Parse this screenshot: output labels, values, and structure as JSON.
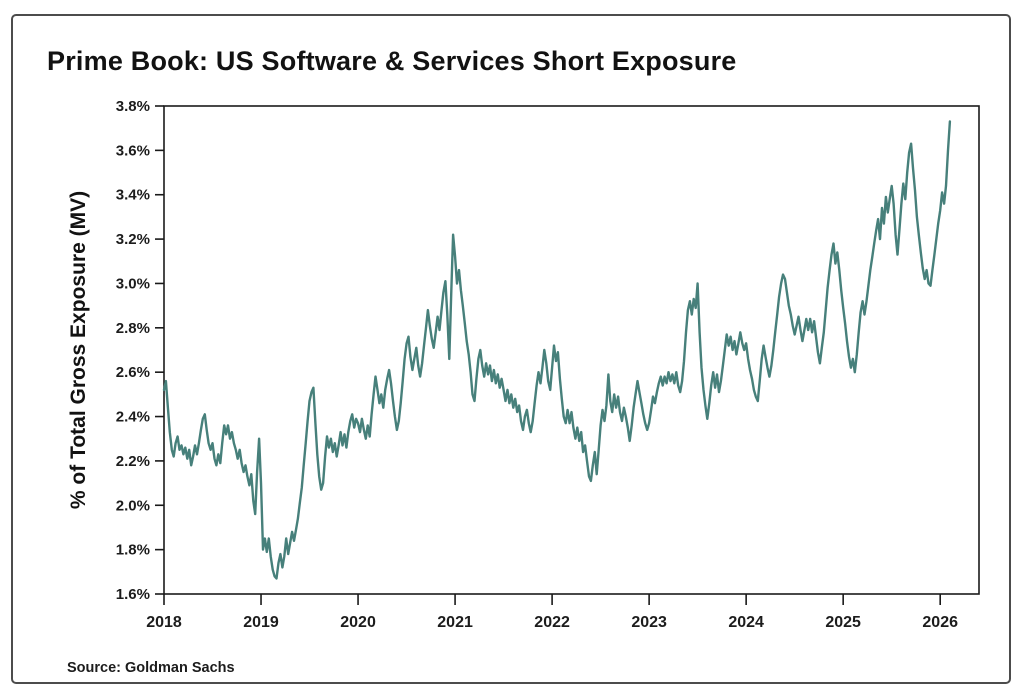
{
  "source_note": "Source: Goldman Sachs",
  "chart_data": {
    "type": "line",
    "title": "Prime Book: US Software & Services Short Exposure",
    "ylabel": "% of Total Gross Exposure (MV)",
    "xlabel": "",
    "xlim": [
      2018.0,
      2026.4
    ],
    "ylim": [
      1.6,
      3.8
    ],
    "grid": false,
    "legend": "none",
    "line_color": "#47807B",
    "axis_color": "#1a1a1a",
    "x_tick_values": [
      2018,
      2019,
      2020,
      2021,
      2022,
      2023,
      2024,
      2025,
      2026
    ],
    "x_tick_labels": [
      "2018",
      "2019",
      "2020",
      "2021",
      "2022",
      "2023",
      "2024",
      "2025",
      "2026"
    ],
    "y_tick_values": [
      3.8,
      3.6,
      3.4,
      3.2,
      3.0,
      2.8,
      2.6,
      2.4,
      2.2,
      2.0,
      1.8,
      1.6
    ],
    "y_tick_labels": [
      "3.8%",
      "3.6%",
      "3.4%",
      "3.2%",
      "3.0%",
      "2.8%",
      "2.6%",
      "2.4%",
      "2.2%",
      "2.0%",
      "1.8%",
      "1.6%"
    ],
    "series": {
      "name": "US Software & Services short exposure, % of total gross exposure (MV)",
      "x_start": 2018.0,
      "x_step": 0.02,
      "values": [
        2.52,
        2.56,
        2.44,
        2.33,
        2.25,
        2.22,
        2.28,
        2.31,
        2.25,
        2.27,
        2.23,
        2.26,
        2.21,
        2.25,
        2.18,
        2.22,
        2.27,
        2.23,
        2.28,
        2.34,
        2.39,
        2.41,
        2.34,
        2.28,
        2.25,
        2.28,
        2.21,
        2.18,
        2.23,
        2.19,
        2.28,
        2.36,
        2.32,
        2.36,
        2.3,
        2.33,
        2.28,
        2.25,
        2.21,
        2.25,
        2.19,
        2.15,
        2.18,
        2.13,
        2.09,
        2.14,
        2.02,
        1.96,
        2.15,
        2.3,
        2.1,
        1.8,
        1.85,
        1.79,
        1.85,
        1.77,
        1.71,
        1.68,
        1.67,
        1.74,
        1.78,
        1.72,
        1.77,
        1.85,
        1.78,
        1.83,
        1.88,
        1.84,
        1.89,
        1.94,
        2.01,
        2.08,
        2.18,
        2.28,
        2.38,
        2.47,
        2.51,
        2.53,
        2.37,
        2.23,
        2.13,
        2.07,
        2.1,
        2.22,
        2.31,
        2.26,
        2.3,
        2.24,
        2.28,
        2.22,
        2.27,
        2.33,
        2.27,
        2.32,
        2.26,
        2.33,
        2.38,
        2.41,
        2.35,
        2.39,
        2.37,
        2.33,
        2.39,
        2.34,
        2.3,
        2.36,
        2.31,
        2.41,
        2.5,
        2.58,
        2.52,
        2.46,
        2.5,
        2.44,
        2.52,
        2.57,
        2.61,
        2.55,
        2.47,
        2.4,
        2.34,
        2.38,
        2.46,
        2.56,
        2.66,
        2.73,
        2.76,
        2.67,
        2.61,
        2.66,
        2.71,
        2.63,
        2.58,
        2.64,
        2.72,
        2.8,
        2.88,
        2.81,
        2.75,
        2.71,
        2.78,
        2.85,
        2.79,
        2.88,
        2.96,
        3.01,
        2.86,
        2.66,
        2.95,
        3.22,
        3.12,
        3.0,
        3.06,
        2.97,
        2.9,
        2.82,
        2.74,
        2.68,
        2.6,
        2.5,
        2.47,
        2.57,
        2.66,
        2.7,
        2.63,
        2.58,
        2.64,
        2.59,
        2.63,
        2.56,
        2.61,
        2.55,
        2.59,
        2.53,
        2.57,
        2.52,
        2.47,
        2.52,
        2.46,
        2.5,
        2.44,
        2.48,
        2.42,
        2.45,
        2.38,
        2.34,
        2.4,
        2.43,
        2.37,
        2.33,
        2.38,
        2.46,
        2.54,
        2.6,
        2.55,
        2.62,
        2.7,
        2.64,
        2.56,
        2.52,
        2.62,
        2.72,
        2.65,
        2.69,
        2.57,
        2.48,
        2.4,
        2.37,
        2.43,
        2.37,
        2.42,
        2.35,
        2.3,
        2.35,
        2.29,
        2.33,
        2.24,
        2.27,
        2.2,
        2.13,
        2.11,
        2.18,
        2.24,
        2.14,
        2.25,
        2.36,
        2.43,
        2.38,
        2.45,
        2.59,
        2.47,
        2.42,
        2.5,
        2.44,
        2.49,
        2.42,
        2.38,
        2.44,
        2.4,
        2.35,
        2.29,
        2.36,
        2.44,
        2.5,
        2.56,
        2.51,
        2.46,
        2.41,
        2.37,
        2.34,
        2.37,
        2.43,
        2.49,
        2.46,
        2.51,
        2.55,
        2.58,
        2.54,
        2.58,
        2.55,
        2.6,
        2.56,
        2.59,
        2.55,
        2.6,
        2.54,
        2.51,
        2.56,
        2.65,
        2.78,
        2.88,
        2.92,
        2.86,
        2.93,
        2.89,
        3.0,
        2.78,
        2.62,
        2.52,
        2.45,
        2.39,
        2.46,
        2.54,
        2.6,
        2.53,
        2.59,
        2.51,
        2.56,
        2.63,
        2.7,
        2.77,
        2.72,
        2.76,
        2.7,
        2.74,
        2.68,
        2.73,
        2.78,
        2.73,
        2.7,
        2.73,
        2.66,
        2.61,
        2.57,
        2.52,
        2.49,
        2.47,
        2.56,
        2.66,
        2.72,
        2.67,
        2.62,
        2.58,
        2.63,
        2.7,
        2.78,
        2.86,
        2.94,
        3.0,
        3.04,
        3.02,
        2.96,
        2.9,
        2.86,
        2.81,
        2.77,
        2.81,
        2.85,
        2.79,
        2.74,
        2.79,
        2.84,
        2.79,
        2.84,
        2.78,
        2.83,
        2.76,
        2.69,
        2.64,
        2.71,
        2.78,
        2.88,
        2.98,
        3.06,
        3.13,
        3.18,
        3.09,
        3.14,
        3.06,
        2.97,
        2.89,
        2.82,
        2.74,
        2.67,
        2.62,
        2.66,
        2.6,
        2.68,
        2.78,
        2.87,
        2.92,
        2.86,
        2.92,
        2.99,
        3.06,
        3.12,
        3.18,
        3.24,
        3.29,
        3.2,
        3.34,
        3.27,
        3.39,
        3.32,
        3.38,
        3.44,
        3.36,
        3.22,
        3.13,
        3.24,
        3.36,
        3.45,
        3.38,
        3.5,
        3.59,
        3.63,
        3.52,
        3.42,
        3.3,
        3.22,
        3.14,
        3.07,
        3.02,
        3.06,
        3.0,
        2.99,
        3.06,
        3.13,
        3.2,
        3.27,
        3.33,
        3.41,
        3.36,
        3.44,
        3.6,
        3.73
      ]
    }
  }
}
